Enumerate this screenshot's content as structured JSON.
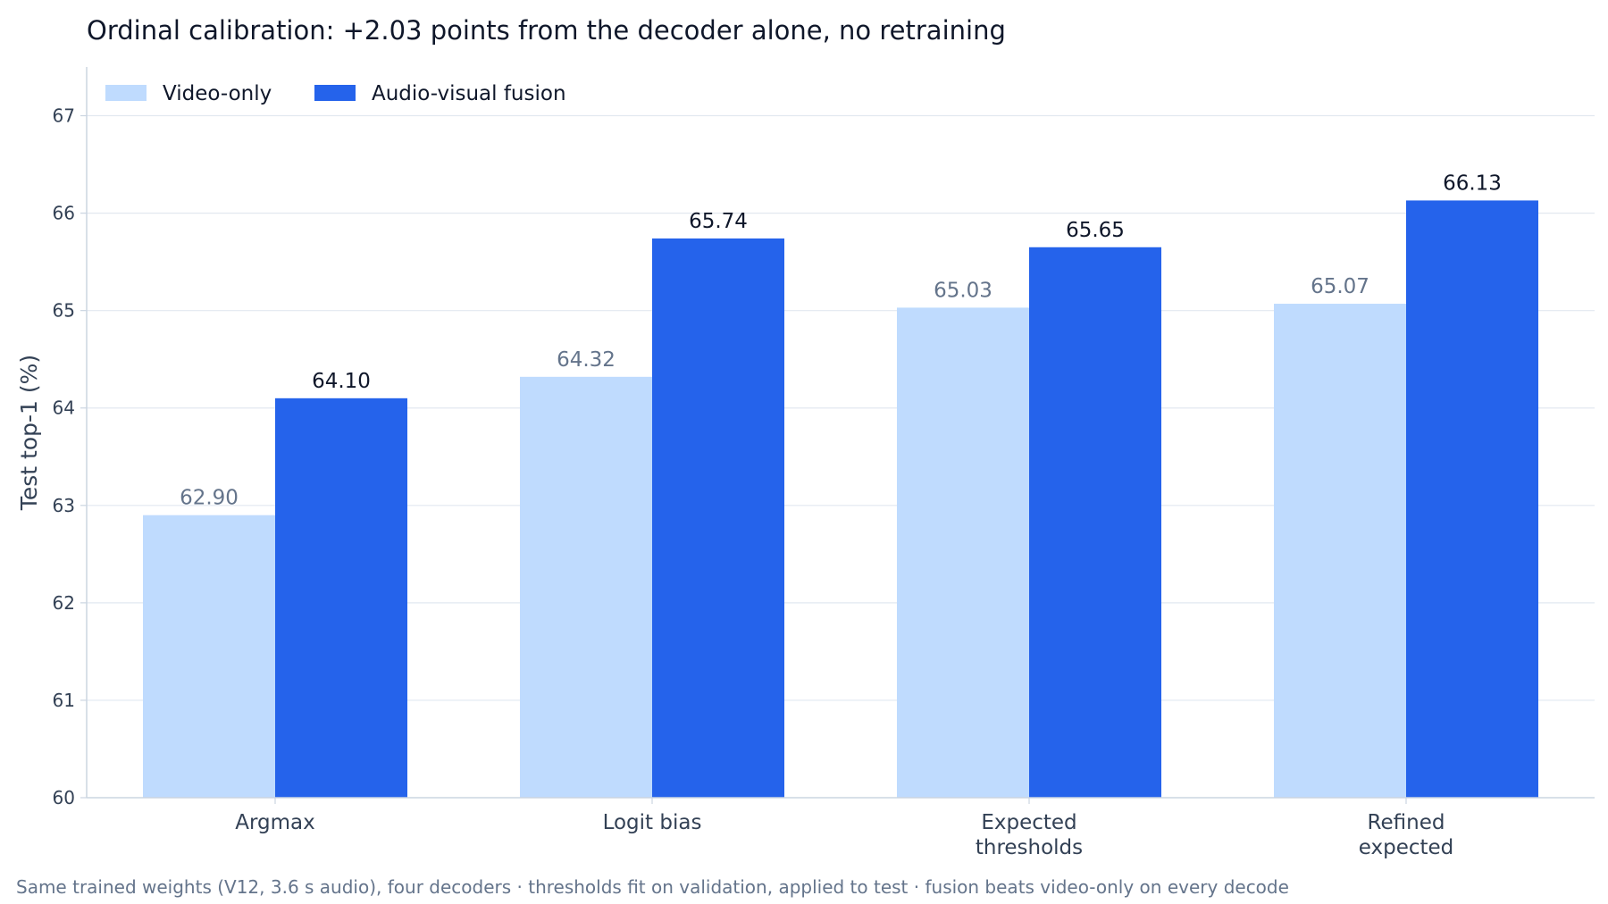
{
  "chart_data": {
    "type": "bar",
    "title": "Ordinal calibration: +2.03 points from the decoder alone, no retraining",
    "ylabel": "Test top-1 (%)",
    "xlabel": "",
    "ylim": [
      60,
      67.5
    ],
    "yticks": [
      60,
      61,
      62,
      63,
      64,
      65,
      66,
      67
    ],
    "grid": true,
    "legend_position": "top-left",
    "categories": [
      [
        "Argmax"
      ],
      [
        "Logit bias"
      ],
      [
        "Expected",
        "thresholds"
      ],
      [
        "Refined",
        "expected"
      ]
    ],
    "series": [
      {
        "name": "Video-only",
        "color": "#bfdbfe",
        "label_color": "#64748b",
        "values": [
          62.9,
          64.32,
          65.03,
          65.07
        ],
        "labels": [
          "62.90",
          "64.32",
          "65.03",
          "65.07"
        ]
      },
      {
        "name": "Audio-visual fusion",
        "color": "#2563eb",
        "label_color": "#0f172a",
        "values": [
          64.1,
          65.74,
          65.65,
          66.13
        ],
        "labels": [
          "64.10",
          "65.74",
          "65.65",
          "66.13"
        ]
      }
    ],
    "footnote": "Same trained weights (V12, 3.6 s audio), four decoders · thresholds fit on validation, applied to test · fusion beats video-only on every decode",
    "colors": {
      "axis": "#cbd5e1",
      "grid": "#e2e8f0"
    }
  }
}
